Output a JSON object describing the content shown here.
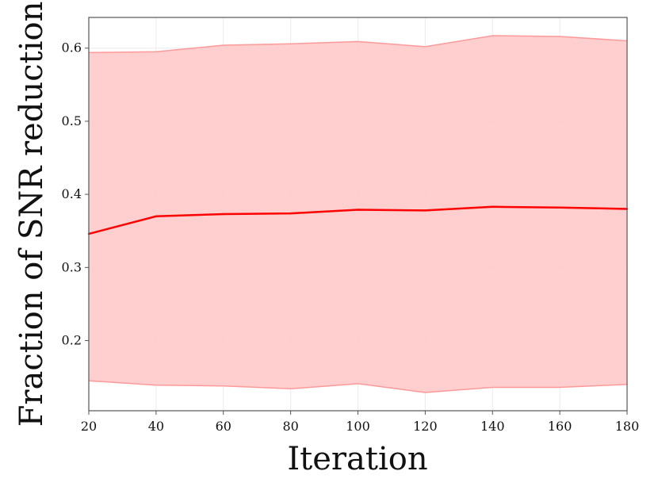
{
  "chart_data": {
    "type": "line",
    "title": "",
    "xlabel": "Iteration",
    "ylabel": "Fraction of SNR reduction",
    "x": [
      20,
      40,
      60,
      80,
      100,
      120,
      140,
      160,
      180
    ],
    "series": [
      {
        "values": [
          0.346,
          0.37,
          0.373,
          0.374,
          0.379,
          0.378,
          0.383,
          0.382,
          0.38
        ],
        "upper": [
          0.594,
          0.595,
          0.604,
          0.606,
          0.609,
          0.602,
          0.617,
          0.616,
          0.61
        ],
        "lower": [
          0.145,
          0.139,
          0.138,
          0.134,
          0.141,
          0.129,
          0.136,
          0.136,
          0.14
        ],
        "line_color": "#ff0000",
        "band_color": "#ffcccc",
        "band_edge_color": "#ff9999"
      }
    ],
    "xlim": [
      20,
      180
    ],
    "ylim": [
      0.104,
      0.642
    ],
    "xticks": [
      20,
      40,
      60,
      80,
      100,
      120,
      140,
      160,
      180
    ],
    "yticks": [
      0.2,
      0.3,
      0.4,
      0.5,
      0.6
    ],
    "xtick_labels": [
      "20",
      "40",
      "60",
      "80",
      "100",
      "120",
      "140",
      "160",
      "180"
    ],
    "ytick_labels": [
      "0.2",
      "0.3",
      "0.4",
      "0.5",
      "0.6"
    ],
    "grid": true,
    "legend": "none"
  }
}
